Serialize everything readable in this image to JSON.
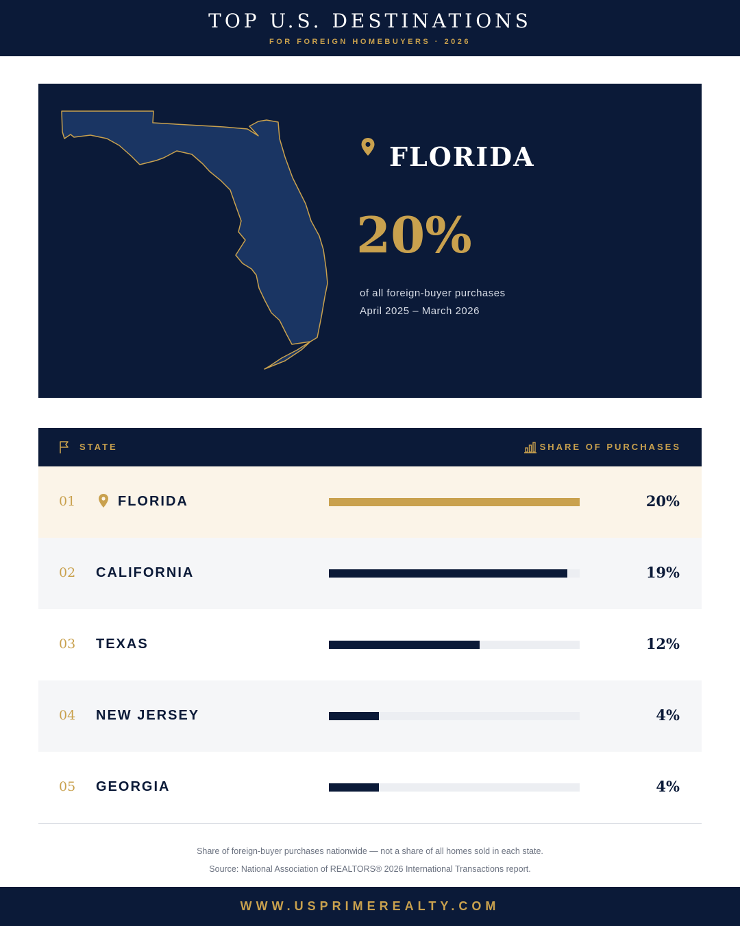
{
  "header": {
    "title": "TOP U.S. DESTINATIONS",
    "subtitle": "FOR FOREIGN HOMEBUYERS  ·  2026"
  },
  "hero": {
    "state": "FLORIDA",
    "percent": "20%",
    "caption_line1": "of all foreign-buyer purchases",
    "caption_line2": "April 2025 – March 2026",
    "icon": "map-pin-icon"
  },
  "table": {
    "col_state": "STATE",
    "col_share": "SHARE OF PURCHASES",
    "state_icon": "flag-icon",
    "share_icon": "bar-chart-icon"
  },
  "rows": [
    {
      "rank": "01",
      "name": "FLORIDA",
      "pct": "20%"
    },
    {
      "rank": "02",
      "name": "CALIFORNIA",
      "pct": "19%"
    },
    {
      "rank": "03",
      "name": "TEXAS",
      "pct": "12%"
    },
    {
      "rank": "04",
      "name": "NEW JERSEY",
      "pct": "4%"
    },
    {
      "rank": "05",
      "name": "GEORGIA",
      "pct": "4%"
    }
  ],
  "notes": {
    "line1": "Share of foreign-buyer purchases nationwide — not a share of all homes sold in each state.",
    "line2": "Source: National Association of REALTORS® 2026 International Transactions report."
  },
  "footer": {
    "url": "WWW.USPRIMEREALTY.COM"
  },
  "colors": {
    "navy": "#0b1a38",
    "gold": "#c9a14e",
    "map_fill": "#1a3563",
    "highlight_row": "#fbf4e8",
    "alt_row": "#f5f6f8"
  },
  "chart_data": {
    "type": "bar",
    "categories": [
      "FLORIDA",
      "CALIFORNIA",
      "TEXAS",
      "NEW JERSEY",
      "GEORGIA"
    ],
    "values": [
      20,
      19,
      12,
      4,
      4
    ],
    "xlabel": "STATE",
    "ylabel": "SHARE OF PURCHASES",
    "ylim": [
      0,
      20
    ],
    "orientation": "horizontal",
    "highlighted": "FLORIDA"
  }
}
